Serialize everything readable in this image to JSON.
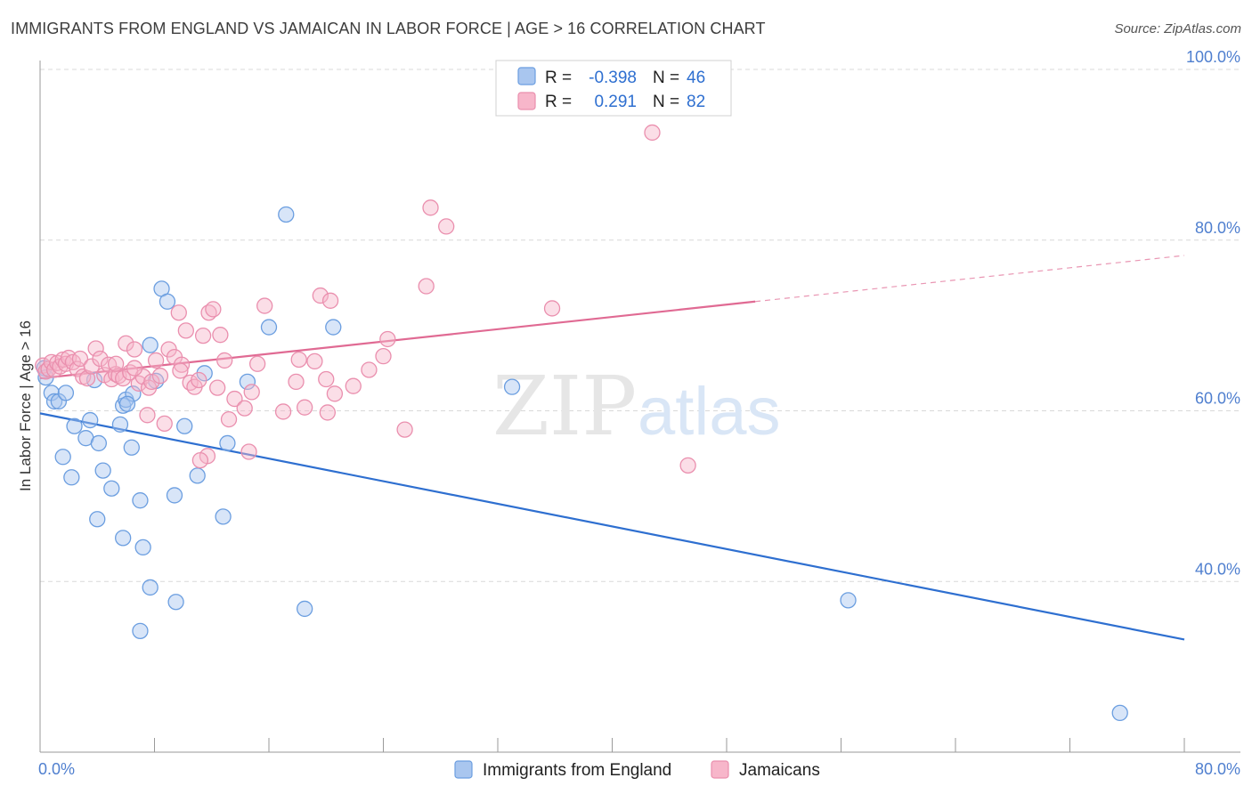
{
  "title": "IMMIGRANTS FROM ENGLAND VS JAMAICAN IN LABOR FORCE | AGE > 16 CORRELATION CHART",
  "source": "Source: ZipAtlas.com",
  "watermark": {
    "zip": "ZIP",
    "atlas": "atlas"
  },
  "legend": {
    "rows": [
      {
        "r_label": "R =",
        "r_value": "-0.398",
        "n_label": "N =",
        "n_value": "46"
      },
      {
        "r_label": "R =",
        "r_value": "0.291",
        "n_label": "N =",
        "n_value": "82"
      }
    ]
  },
  "bottom_legend": [
    "Immigrants from England",
    "Jamaicans"
  ],
  "colors": {
    "england_fill": "#a9c6ef",
    "england_stroke": "#6b9ee0",
    "england_line": "#2e6fd0",
    "jamaican_fill": "#f7b6ca",
    "jamaican_stroke": "#ea8fae",
    "jamaican_line": "#e06a93",
    "axis_text": "#4f7fcf",
    "grid": "#d8d8d8"
  },
  "chart_data": {
    "type": "scatter",
    "title": "IMMIGRANTS FROM ENGLAND VS JAMAICAN IN LABOR FORCE | AGE > 16 CORRELATION CHART",
    "xlabel": "",
    "ylabel": "In Labor Force | Age > 16",
    "xlim": [
      0,
      80
    ],
    "ylim": [
      20,
      100
    ],
    "x_tick_labels": [
      "0.0%",
      "80.0%"
    ],
    "y_ticks": [
      40,
      60,
      80,
      100
    ],
    "y_tick_labels": [
      "40.0%",
      "60.0%",
      "80.0%",
      "100.0%"
    ],
    "grid": true,
    "legend_position": "top-center",
    "series": [
      {
        "name": "Immigrants from England",
        "R": -0.398,
        "N": 46,
        "trend": {
          "x": [
            0,
            80
          ],
          "y": [
            59.7,
            33.2
          ],
          "dashed_from": null
        },
        "points": [
          [
            0.3,
            65.0
          ],
          [
            0.4,
            63.9
          ],
          [
            0.8,
            62.1
          ],
          [
            1.0,
            61.1
          ],
          [
            1.3,
            61.1
          ],
          [
            1.8,
            62.1
          ],
          [
            2.4,
            58.2
          ],
          [
            3.2,
            56.8
          ],
          [
            3.5,
            58.9
          ],
          [
            4.1,
            56.2
          ],
          [
            4.4,
            53.0
          ],
          [
            1.6,
            54.6
          ],
          [
            2.2,
            52.2
          ],
          [
            5.0,
            50.9
          ],
          [
            4.0,
            47.3
          ],
          [
            5.8,
            60.6
          ],
          [
            6.0,
            61.3
          ],
          [
            6.5,
            62.0
          ],
          [
            5.6,
            58.4
          ],
          [
            6.1,
            60.8
          ],
          [
            6.4,
            55.7
          ],
          [
            7.0,
            49.5
          ],
          [
            5.8,
            45.1
          ],
          [
            7.2,
            44.0
          ],
          [
            7.7,
            39.3
          ],
          [
            7.0,
            34.2
          ],
          [
            9.5,
            37.6
          ],
          [
            7.7,
            67.7
          ],
          [
            8.1,
            63.5
          ],
          [
            8.5,
            74.3
          ],
          [
            8.9,
            72.8
          ],
          [
            10.1,
            58.2
          ],
          [
            9.4,
            50.1
          ],
          [
            11.0,
            52.4
          ],
          [
            11.5,
            64.4
          ],
          [
            12.8,
            47.6
          ],
          [
            13.1,
            56.2
          ],
          [
            14.5,
            63.4
          ],
          [
            16.0,
            69.8
          ],
          [
            17.2,
            83.0
          ],
          [
            18.5,
            36.8
          ],
          [
            20.5,
            69.8
          ],
          [
            33.0,
            62.8
          ],
          [
            56.5,
            37.8
          ],
          [
            75.5,
            24.6
          ],
          [
            3.8,
            63.6
          ]
        ]
      },
      {
        "name": "Jamaicans",
        "R": 0.291,
        "N": 82,
        "trend": {
          "x": [
            0,
            80
          ],
          "y": [
            63.8,
            78.2
          ],
          "dashed_from": 50
        },
        "points": [
          [
            0.2,
            65.3
          ],
          [
            0.4,
            64.6
          ],
          [
            0.6,
            64.9
          ],
          [
            0.8,
            65.7
          ],
          [
            1.0,
            64.8
          ],
          [
            1.2,
            65.6
          ],
          [
            1.4,
            65.2
          ],
          [
            1.6,
            66.0
          ],
          [
            1.8,
            65.5
          ],
          [
            2.0,
            66.2
          ],
          [
            2.3,
            65.7
          ],
          [
            2.6,
            64.9
          ],
          [
            2.8,
            66.1
          ],
          [
            3.0,
            64.0
          ],
          [
            3.3,
            63.8
          ],
          [
            3.6,
            65.2
          ],
          [
            3.9,
            67.3
          ],
          [
            4.2,
            66.1
          ],
          [
            4.5,
            64.2
          ],
          [
            4.8,
            65.4
          ],
          [
            5.0,
            63.7
          ],
          [
            5.3,
            64.3
          ],
          [
            5.5,
            64.1
          ],
          [
            5.8,
            63.8
          ],
          [
            5.3,
            65.5
          ],
          [
            6.0,
            67.9
          ],
          [
            6.3,
            64.5
          ],
          [
            6.6,
            67.2
          ],
          [
            6.9,
            63.2
          ],
          [
            7.2,
            64.0
          ],
          [
            7.5,
            59.5
          ],
          [
            7.6,
            62.7
          ],
          [
            7.8,
            63.4
          ],
          [
            8.1,
            65.9
          ],
          [
            8.4,
            64.1
          ],
          [
            8.7,
            58.5
          ],
          [
            9.0,
            67.2
          ],
          [
            9.4,
            66.3
          ],
          [
            9.7,
            71.5
          ],
          [
            9.9,
            65.4
          ],
          [
            10.2,
            69.4
          ],
          [
            10.5,
            63.3
          ],
          [
            10.8,
            62.8
          ],
          [
            11.1,
            63.6
          ],
          [
            11.4,
            68.8
          ],
          [
            11.7,
            54.7
          ],
          [
            11.8,
            71.5
          ],
          [
            12.1,
            71.9
          ],
          [
            12.4,
            62.7
          ],
          [
            12.6,
            68.9
          ],
          [
            12.9,
            65.9
          ],
          [
            13.2,
            59.0
          ],
          [
            13.6,
            61.4
          ],
          [
            14.3,
            60.3
          ],
          [
            14.8,
            62.2
          ],
          [
            15.2,
            65.5
          ],
          [
            11.2,
            54.2
          ],
          [
            14.6,
            55.2
          ],
          [
            15.7,
            72.3
          ],
          [
            17.0,
            59.9
          ],
          [
            17.9,
            63.4
          ],
          [
            18.1,
            66.0
          ],
          [
            18.5,
            60.4
          ],
          [
            19.2,
            65.8
          ],
          [
            19.6,
            73.5
          ],
          [
            20.0,
            63.7
          ],
          [
            20.1,
            59.8
          ],
          [
            20.3,
            72.9
          ],
          [
            20.6,
            62.0
          ],
          [
            21.9,
            62.9
          ],
          [
            23.0,
            64.8
          ],
          [
            24.0,
            66.4
          ],
          [
            24.3,
            68.4
          ],
          [
            25.5,
            57.8
          ],
          [
            27.0,
            74.6
          ],
          [
            27.3,
            83.8
          ],
          [
            28.4,
            81.6
          ],
          [
            35.8,
            72.0
          ],
          [
            42.8,
            92.6
          ],
          [
            45.3,
            53.6
          ],
          [
            6.6,
            65.0
          ],
          [
            9.8,
            64.7
          ]
        ]
      }
    ]
  }
}
